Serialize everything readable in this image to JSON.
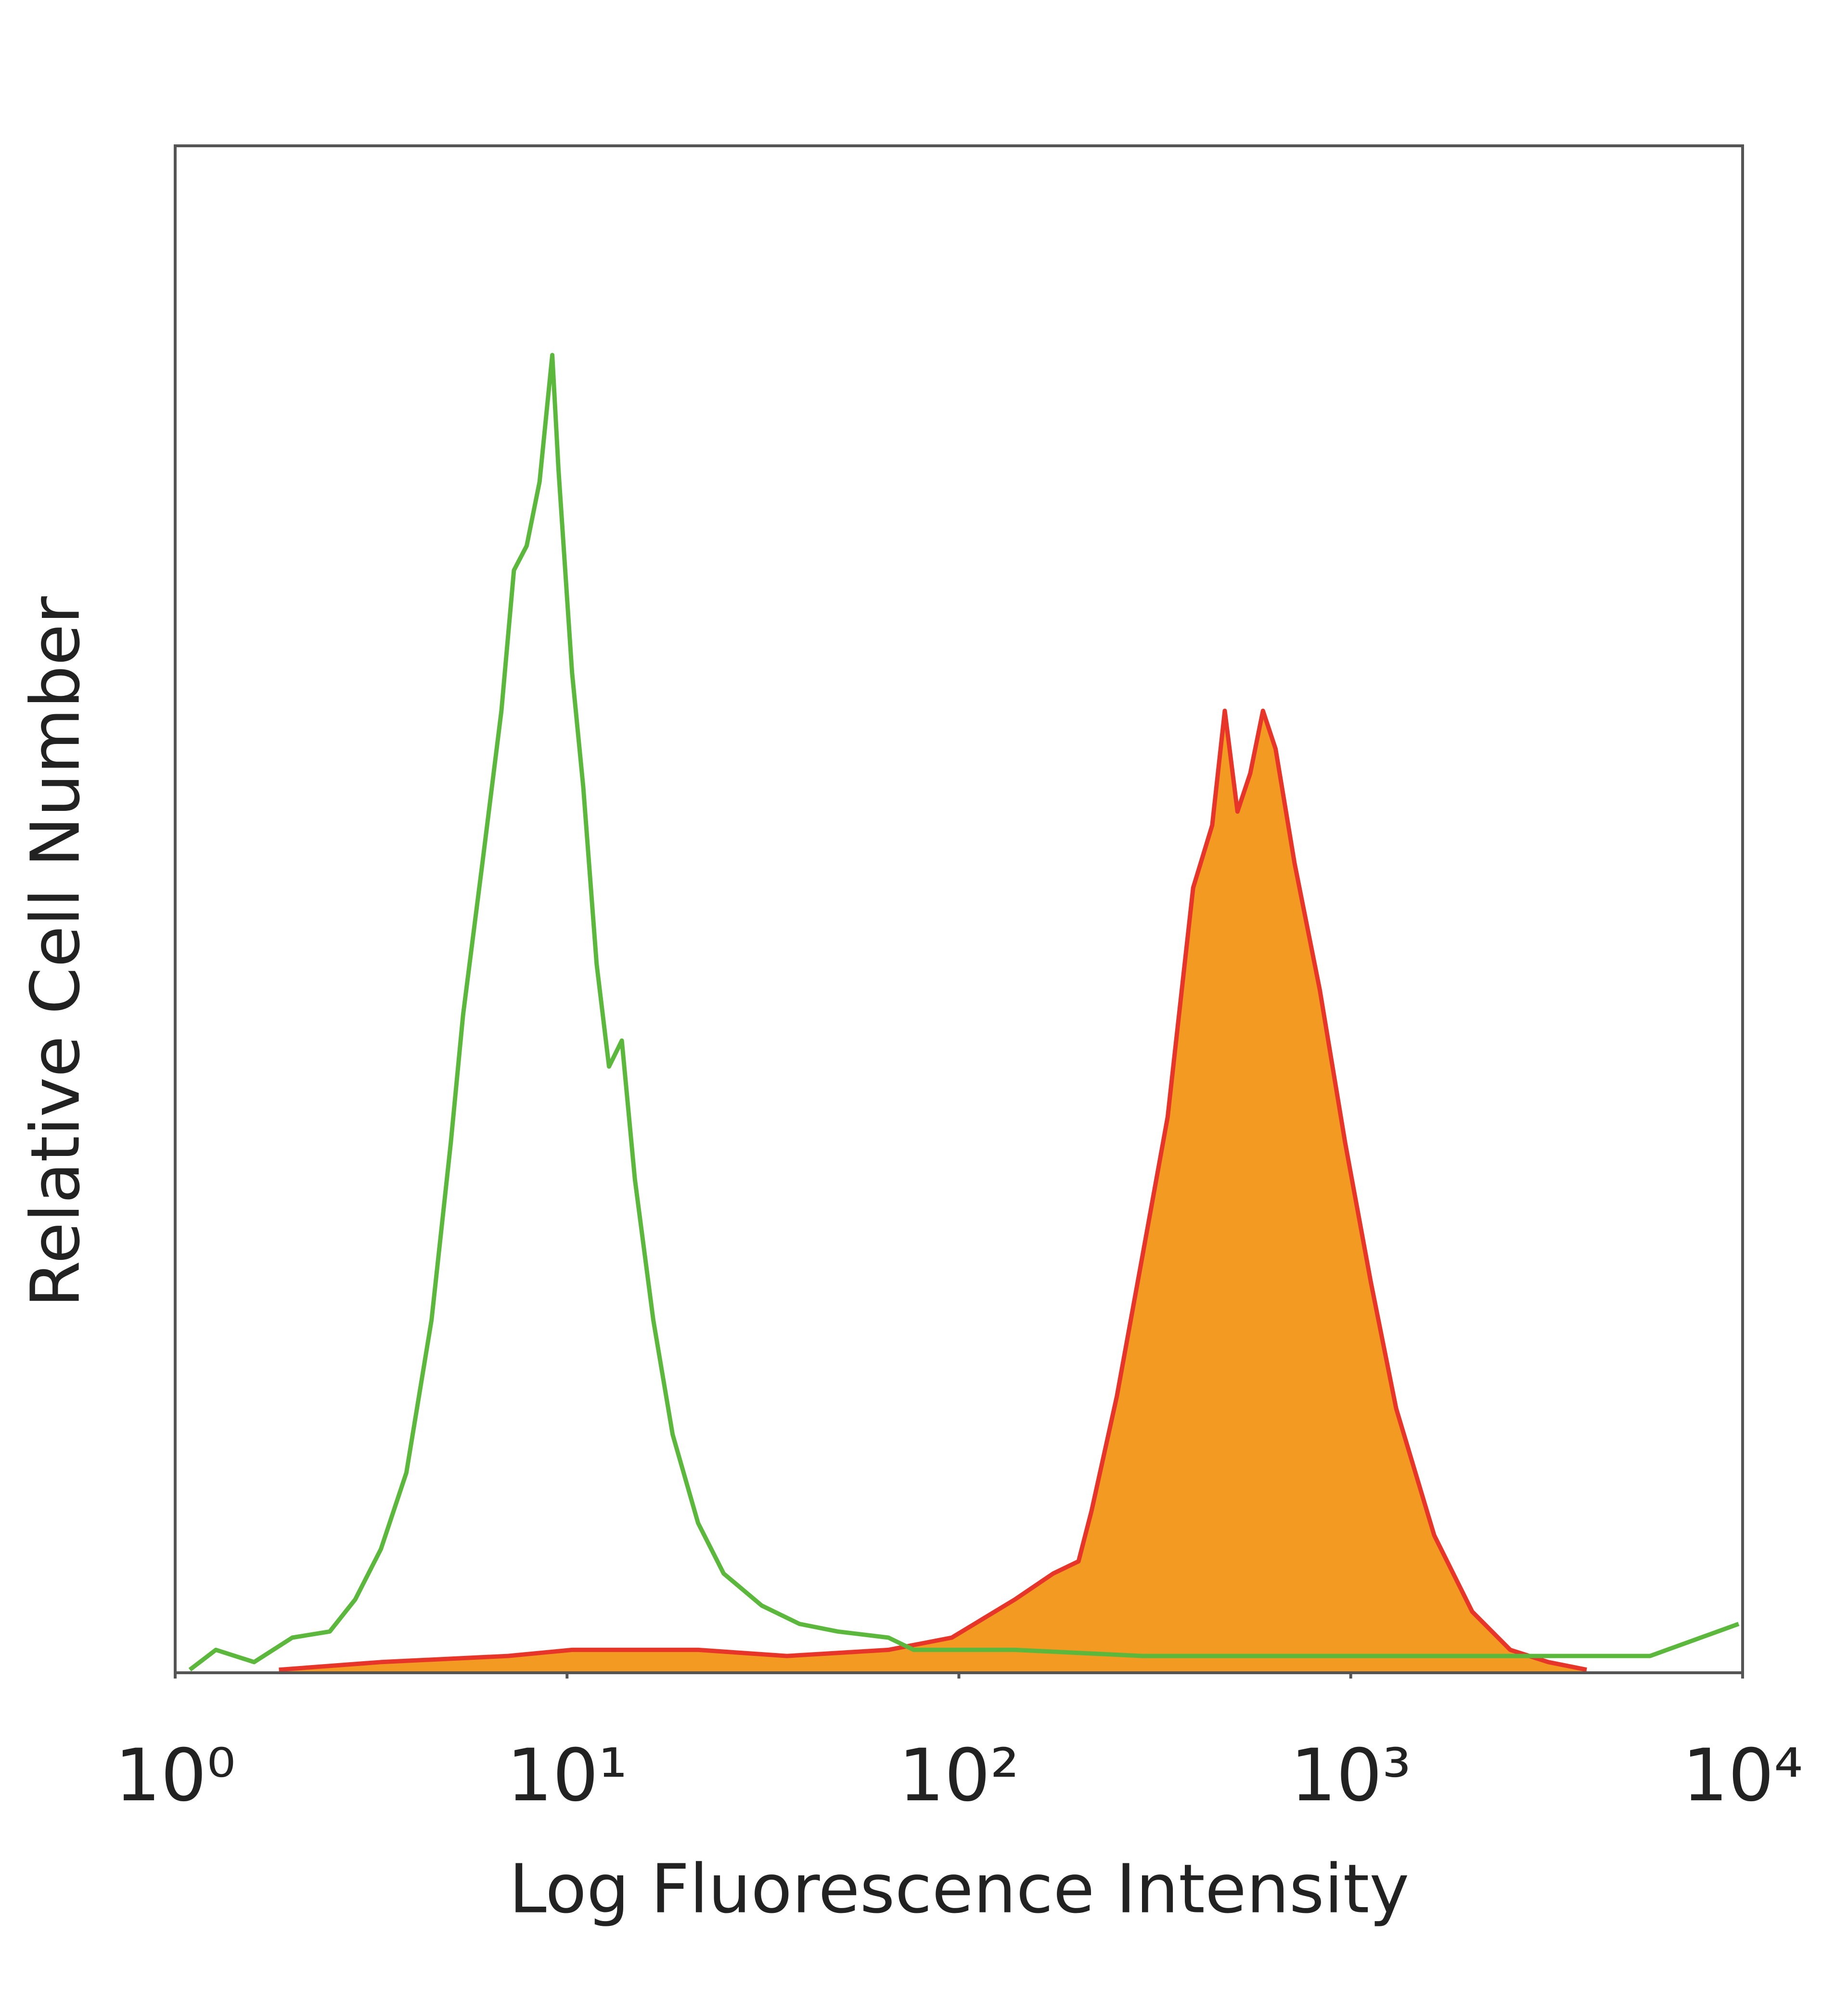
{
  "chart_data": {
    "type": "line",
    "xlabel": "Log Fluorescence Intensity",
    "ylabel": "Relative Cell Number",
    "xscale": "log",
    "xlim": [
      1,
      10000
    ],
    "xticks": [
      {
        "value": 1,
        "label": "10⁰"
      },
      {
        "value": 10,
        "label": "10¹"
      },
      {
        "value": 100,
        "label": "10²"
      },
      {
        "value": 1000,
        "label": "10³"
      },
      {
        "value": 10000,
        "label": "10⁴"
      }
    ],
    "ylim": [
      0,
      100
    ],
    "series": [
      {
        "color": "#e8352a",
        "fill": "#f39a22",
        "x": [
          1.84,
          3.35,
          7.06,
          10.3,
          21.6,
          36.4,
          66.1,
          95.9,
          139,
          174,
          202,
          218,
          253,
          294,
          341,
          396,
          443,
          477,
          514,
          554,
          597,
          643,
          719,
          834,
          968,
          1125,
          1306,
          1633,
          2042,
          2553,
          3193,
          3999
        ],
        "values": [
          0.2,
          0.7,
          1.1,
          1.5,
          1.5,
          1.1,
          1.5,
          2.3,
          4.8,
          6.5,
          7.3,
          10.6,
          18.1,
          27.3,
          36.4,
          51.4,
          55.5,
          63.0,
          56.4,
          58.9,
          63.0,
          60.5,
          53.0,
          44.7,
          34.7,
          25.6,
          17.3,
          9.0,
          4.0,
          1.5,
          0.7,
          0.2
        ]
      },
      {
        "color": "#5cb83c",
        "x": [
          1.09,
          1.27,
          1.59,
          1.99,
          2.48,
          2.88,
          3.35,
          3.89,
          4.51,
          5.05,
          5.43,
          6.08,
          6.8,
          7.32,
          7.89,
          8.51,
          9.17,
          9.51,
          10.3,
          11.0,
          11.9,
          12.8,
          13.8,
          14.9,
          16.6,
          18.6,
          21.6,
          25.1,
          31.4,
          39.2,
          49.1,
          66.1,
          76.7,
          139,
          294,
          620,
          1306,
          2754,
          5806,
          9772
        ],
        "values": [
          0.2,
          1.5,
          0.7,
          2.3,
          2.7,
          4.8,
          8.1,
          13.1,
          23.1,
          34.7,
          43.1,
          53.0,
          63.0,
          72.2,
          73.8,
          78.0,
          86.3,
          78.8,
          65.5,
          58.0,
          46.4,
          39.7,
          41.4,
          32.3,
          23.1,
          15.6,
          9.8,
          6.5,
          4.4,
          3.2,
          2.7,
          2.3,
          1.5,
          1.5,
          1.1,
          1.1,
          1.1,
          1.1,
          1.1,
          3.2
        ]
      }
    ]
  }
}
